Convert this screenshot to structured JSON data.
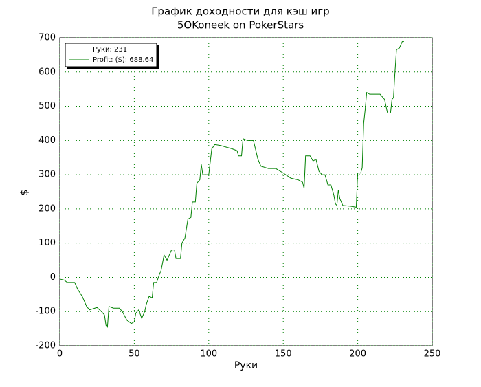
{
  "chart_data": {
    "type": "line",
    "title": "График доходности для кэш игр",
    "subtitle": "5OKoneek on PokerStars",
    "x_label": "Руки",
    "y_label": "$",
    "legend_header": "Руки: 231",
    "legend_position": "upper left",
    "grid": true,
    "xlim": [
      0,
      250
    ],
    "xticks": [
      0,
      50,
      100,
      150,
      200,
      250
    ],
    "ylim": [
      -200,
      700
    ],
    "yticks": [
      -200,
      -100,
      0,
      100,
      200,
      300,
      400,
      500,
      600,
      700
    ],
    "x": [
      0,
      3,
      5,
      10,
      12,
      15,
      18,
      20,
      25,
      28,
      30,
      31,
      32,
      33,
      36,
      40,
      42,
      45,
      48,
      50,
      51,
      53,
      55,
      57,
      58,
      60,
      62,
      63,
      65,
      67,
      68,
      70,
      72,
      75,
      77,
      78,
      81,
      82,
      84,
      86,
      88,
      89,
      91,
      92,
      94,
      95,
      96,
      98,
      100,
      102,
      104,
      108,
      112,
      116,
      119,
      120,
      122,
      123,
      126,
      130,
      133,
      135,
      140,
      145,
      150,
      155,
      160,
      163,
      164,
      165,
      168,
      170,
      172,
      174,
      176,
      178,
      180,
      182,
      184,
      185,
      186,
      187,
      188,
      190,
      195,
      199,
      200,
      202,
      203,
      204,
      205,
      206,
      208,
      215,
      218,
      220,
      222,
      223,
      224,
      225,
      226,
      228,
      230,
      231
    ],
    "series": [
      {
        "name": "Profit: ($): 688.64",
        "color": "#008000",
        "values": [
          -5,
          -8,
          -15,
          -15,
          -35,
          -55,
          -85,
          -95,
          -88,
          -100,
          -110,
          -140,
          -145,
          -85,
          -90,
          -90,
          -100,
          -125,
          -135,
          -130,
          -105,
          -95,
          -120,
          -100,
          -80,
          -55,
          -60,
          -15,
          -15,
          10,
          20,
          65,
          50,
          80,
          80,
          55,
          55,
          100,
          115,
          170,
          175,
          220,
          220,
          275,
          285,
          330,
          300,
          300,
          300,
          375,
          388,
          385,
          380,
          375,
          370,
          355,
          355,
          405,
          400,
          400,
          345,
          325,
          318,
          318,
          305,
          290,
          285,
          278,
          260,
          355,
          355,
          340,
          345,
          310,
          300,
          300,
          270,
          270,
          240,
          215,
          210,
          255,
          230,
          210,
          208,
          205,
          305,
          305,
          320,
          450,
          490,
          540,
          535,
          535,
          520,
          480,
          480,
          520,
          525,
          600,
          665,
          670,
          690,
          688.64
        ]
      }
    ]
  }
}
